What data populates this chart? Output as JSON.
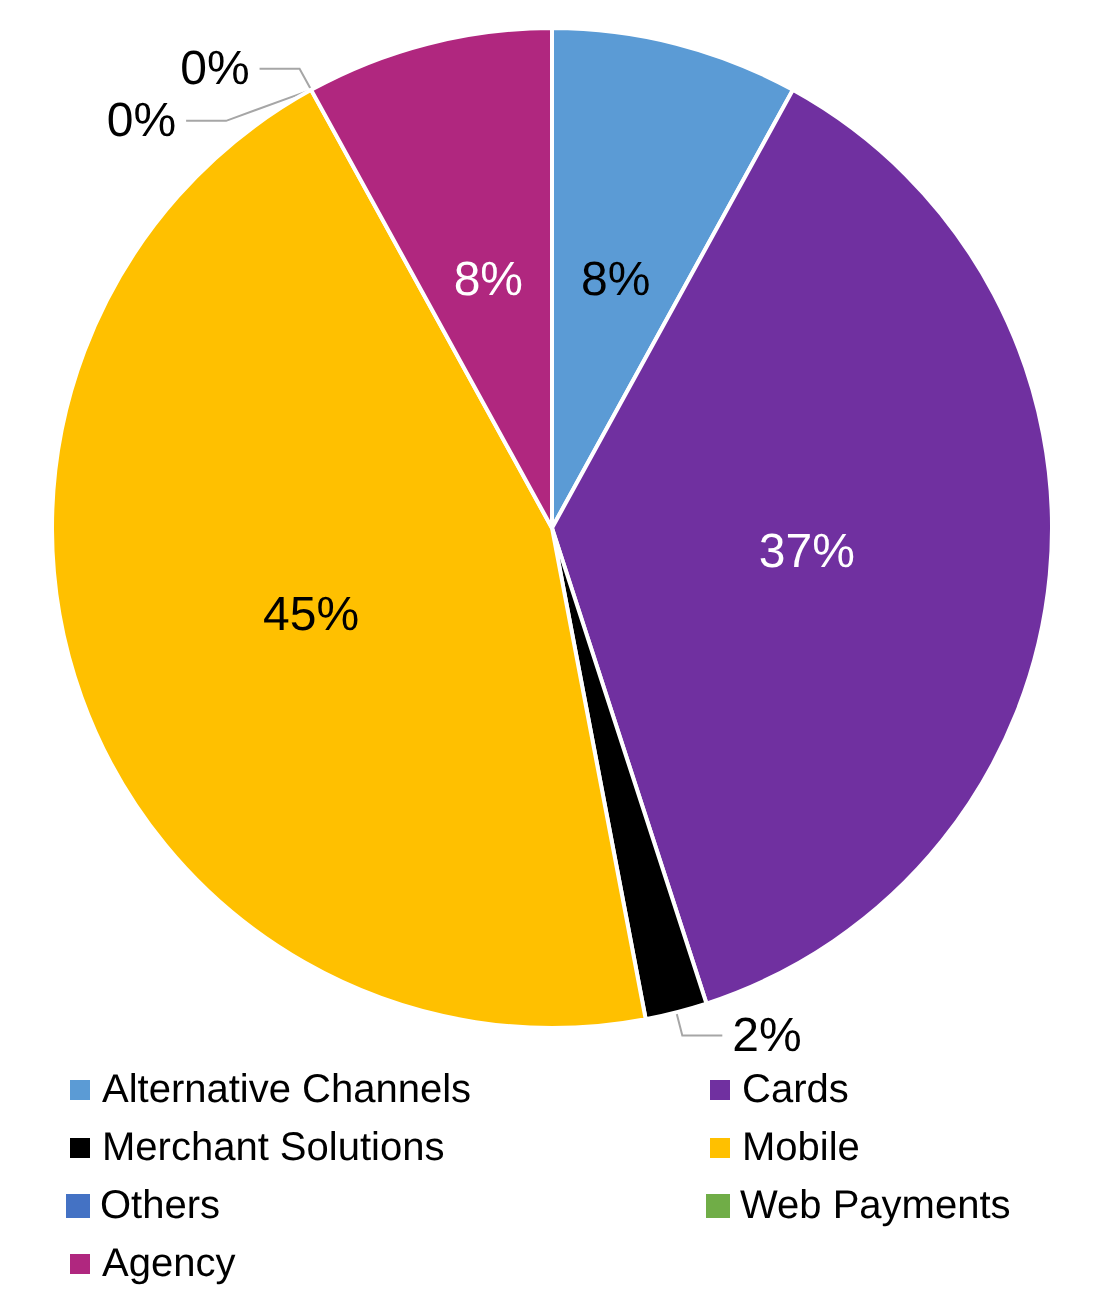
{
  "chart_data": {
    "type": "pie",
    "categories": [
      "Alternative Channels",
      "Cards",
      "Merchant Solutions",
      "Mobile",
      "Others",
      "Web Payments",
      "Agency"
    ],
    "values": [
      8,
      37,
      2,
      45,
      0,
      0,
      8
    ],
    "colors": [
      "#5b9bd5",
      "#7030a0",
      "#000000",
      "#ffc000",
      "#4472c4",
      "#70ad47",
      "#b0277f"
    ],
    "value_labels": [
      "8%",
      "37%",
      "2%",
      "45%",
      "0%",
      "0%",
      "8%"
    ],
    "legend": "bottom"
  }
}
